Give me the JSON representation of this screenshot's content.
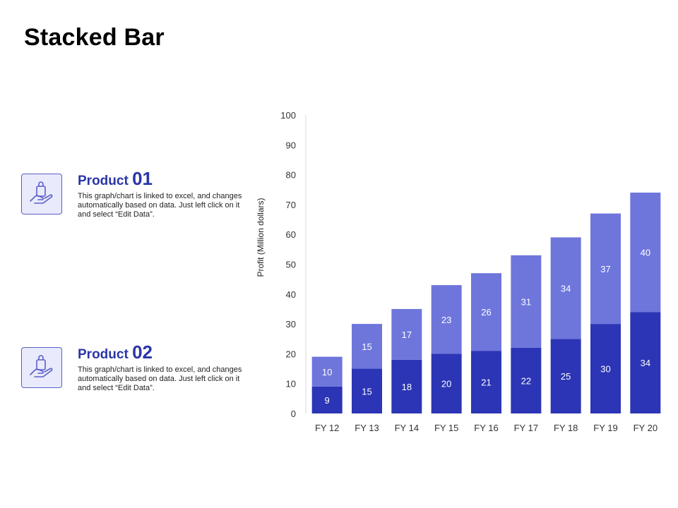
{
  "page": {
    "title": "Stacked Bar"
  },
  "products": [
    {
      "label": "Product",
      "number": "01",
      "icon": "hand-holding-shopping-bag-icon",
      "description": "This graph/chart is linked to excel, and changes automatically based on data. Just left click on it and select “Edit Data”."
    },
    {
      "label": "Product",
      "number": "02",
      "icon": "hand-holding-shopping-bag-icon",
      "description": "This graph/chart is linked to excel, and changes automatically based on data. Just left click on it and select “Edit Data”."
    }
  ],
  "chart_data": {
    "type": "bar",
    "stacked": true,
    "title": "",
    "xlabel": "",
    "ylabel": "Profit  (Million dollars)",
    "ylim": [
      0,
      100
    ],
    "yticks": [
      0,
      10,
      20,
      30,
      40,
      50,
      60,
      70,
      80,
      90,
      100
    ],
    "grid": false,
    "categories": [
      "FY 12",
      "FY 13",
      "FY 14",
      "FY 15",
      "FY 16",
      "FY 17",
      "FY 18",
      "FY 19",
      "FY 20"
    ],
    "series": [
      {
        "values": [
          9,
          15,
          18,
          20,
          21,
          22,
          25,
          30,
          34
        ],
        "color": "#2b35b5"
      },
      {
        "values": [
          10,
          15,
          17,
          23,
          26,
          31,
          34,
          37,
          40
        ],
        "color": "#6e76dc"
      }
    ]
  }
}
